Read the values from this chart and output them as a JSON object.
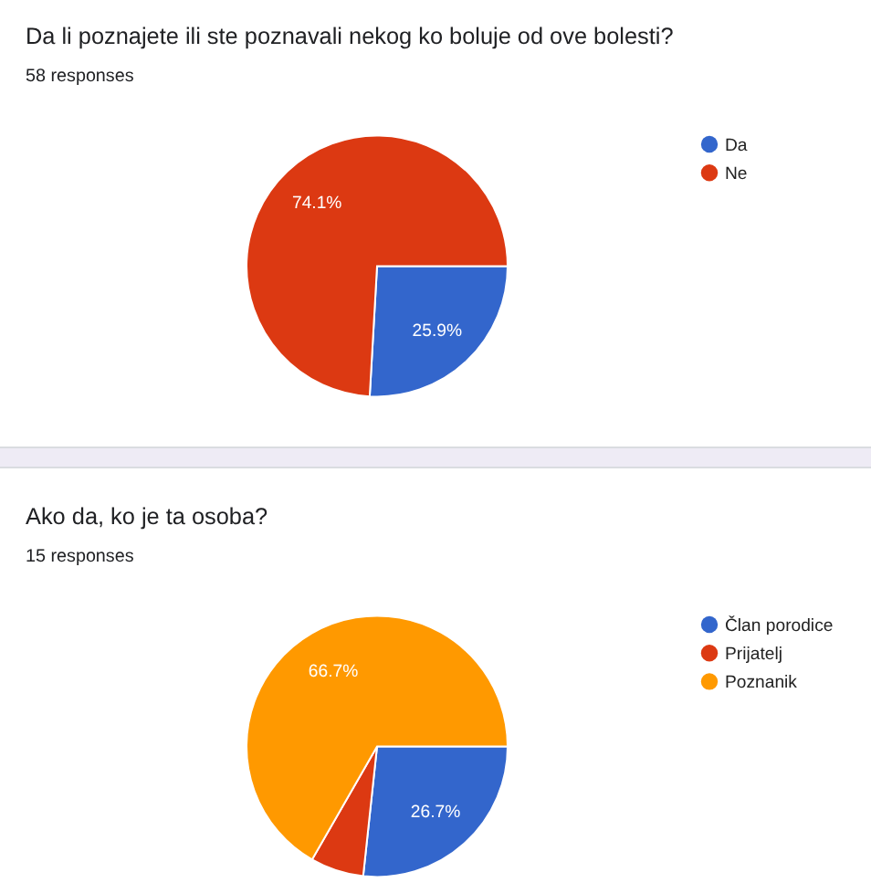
{
  "chart_data": [
    {
      "type": "pie",
      "title": "Da li poznajete ili ste poznavali nekog ko boluje od ove bolesti?",
      "subtitle": "58 responses",
      "categories": [
        "Da",
        "Ne"
      ],
      "values": [
        25.9,
        74.1
      ],
      "colors": [
        "#3366cc",
        "#dc3912"
      ],
      "value_labels": [
        "25.9%",
        "74.1%"
      ],
      "legend": "right"
    },
    {
      "type": "pie",
      "title": "Ako da, ko je ta osoba?",
      "subtitle": "15 responses",
      "categories": [
        "Član porodice",
        "Prijatelj",
        "Poznanik"
      ],
      "values": [
        26.7,
        6.6,
        66.7
      ],
      "colors": [
        "#3366cc",
        "#dc3912",
        "#ff9900"
      ],
      "value_labels": [
        "26.7%",
        null,
        "66.7%"
      ],
      "legend": "right"
    }
  ]
}
